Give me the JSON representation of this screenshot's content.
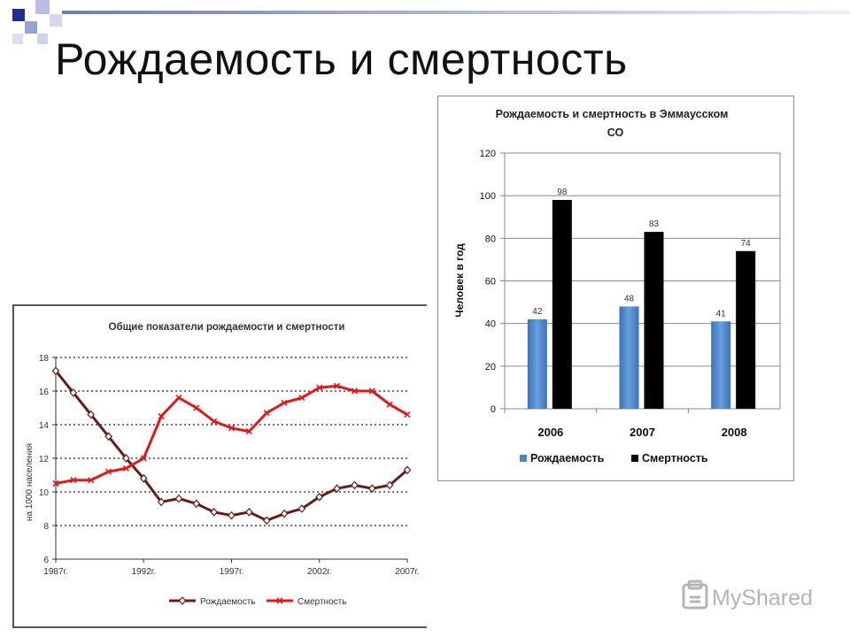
{
  "slide": {
    "title": "Рождаемость и смертность",
    "watermark": "MyShared"
  },
  "colors": {
    "birth_line": "#6b1a1a",
    "death_line": "#e0191e",
    "birth_bar": "#4a86c8",
    "death_bar": "#000000",
    "corner_squares": [
      "#1f2f8f",
      "#8d96c9",
      "#c8cce6"
    ]
  },
  "chart_data": [
    {
      "type": "line",
      "title": "Общие показатели рождаемости и смертности",
      "ylabel": "на 1000 населения",
      "xlabel": "",
      "ylim": [
        6,
        18
      ],
      "yticks": [
        "6",
        "8",
        "10",
        "12",
        "14",
        "16",
        "18"
      ],
      "x": [
        1987,
        1988,
        1989,
        1990,
        1991,
        1992,
        1993,
        1994,
        1995,
        1996,
        1997,
        1998,
        1999,
        2000,
        2001,
        2002,
        2003,
        2004,
        2005,
        2006,
        2007
      ],
      "xtick_labels": [
        "1987г.",
        "1992г.",
        "1997г.",
        "2002г.",
        "2007г."
      ],
      "xtick_years": [
        1987,
        1992,
        1997,
        2002,
        2007
      ],
      "grid": true,
      "legend_position": "bottom",
      "series": [
        {
          "name": "Рождаемость",
          "values": [
            17.2,
            15.9,
            14.6,
            13.3,
            12.0,
            10.8,
            9.4,
            9.6,
            9.3,
            8.8,
            8.6,
            8.8,
            8.3,
            8.7,
            9.0,
            9.7,
            10.2,
            10.4,
            10.2,
            10.4,
            11.3
          ]
        },
        {
          "name": "Смертность",
          "values": [
            10.5,
            10.7,
            10.7,
            11.2,
            11.4,
            12.0,
            14.5,
            15.6,
            15.0,
            14.2,
            13.8,
            13.6,
            14.7,
            15.3,
            15.6,
            16.2,
            16.3,
            16.0,
            16.0,
            15.2,
            14.6
          ]
        }
      ]
    },
    {
      "type": "bar",
      "title": "Рождаемость и смертность в Эммаусском СО",
      "title_lines": [
        "Рождаемость и смертность в Эммаусском",
        "СО"
      ],
      "ylabel": "Человек в год",
      "xlabel": "",
      "ylim": [
        0,
        120
      ],
      "yticks": [
        "0",
        "20",
        "40",
        "60",
        "80",
        "100",
        "120"
      ],
      "categories": [
        "2006",
        "2007",
        "2008"
      ],
      "grid": true,
      "legend_position": "bottom",
      "series": [
        {
          "name": "Рождаемость",
          "values": [
            42,
            48,
            41
          ]
        },
        {
          "name": "Смертность",
          "values": [
            98,
            83,
            74
          ]
        }
      ]
    }
  ]
}
